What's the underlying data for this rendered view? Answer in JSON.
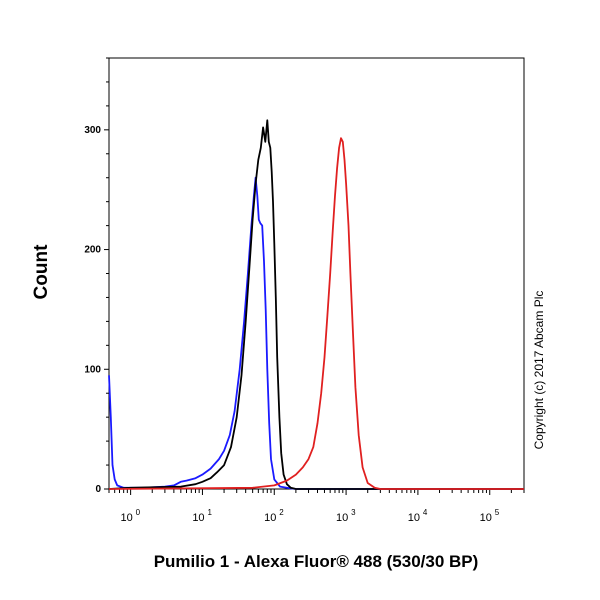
{
  "chart_data": {
    "type": "line",
    "title": "",
    "xlabel": "Pumilio 1 - Alexa Fluor® 488 (530/30 BP)",
    "ylabel": "Count",
    "xscale": "log",
    "xlim": [
      0.5,
      300000
    ],
    "ylim": [
      0,
      360
    ],
    "grid": false,
    "legend": "none",
    "copyright": "Copyright (c) 2017 Abcam Plc",
    "y_ticks": [
      {
        "value": 0,
        "label": "0"
      },
      {
        "value": 100,
        "label": "100"
      },
      {
        "value": 200,
        "label": "200"
      },
      {
        "value": 300,
        "label": "300"
      }
    ],
    "x_ticks": [
      {
        "value": 1,
        "base": "10",
        "exp": "0"
      },
      {
        "value": 10,
        "base": "10",
        "exp": "1"
      },
      {
        "value": 100,
        "base": "10",
        "exp": "2"
      },
      {
        "value": 1000,
        "base": "10",
        "exp": "3"
      },
      {
        "value": 10000,
        "base": "10",
        "exp": "4"
      },
      {
        "value": 100000,
        "base": "10",
        "exp": "5"
      }
    ],
    "series": [
      {
        "color": "#1a1aff",
        "x": [
          0.5,
          0.53,
          0.56,
          0.6,
          0.65,
          0.8,
          1.5,
          3,
          4,
          5,
          6,
          8,
          10,
          13,
          17,
          20,
          24,
          28,
          33,
          38,
          43,
          48,
          52,
          55,
          58,
          61,
          64,
          68,
          72,
          76,
          80,
          85,
          90,
          100,
          120,
          150,
          200,
          1000,
          300000
        ],
        "y": [
          95,
          60,
          20,
          8,
          3,
          1,
          1,
          2,
          3,
          6,
          7,
          9,
          12,
          17,
          25,
          32,
          45,
          65,
          100,
          140,
          180,
          220,
          245,
          260,
          245,
          225,
          222,
          220,
          190,
          150,
          100,
          55,
          25,
          8,
          2,
          1,
          0,
          0,
          0
        ]
      },
      {
        "color": "#000000",
        "x": [
          0.5,
          1,
          5,
          8,
          10,
          13,
          16,
          20,
          25,
          30,
          35,
          40,
          45,
          50,
          55,
          60,
          65,
          70,
          75,
          80,
          84,
          88,
          92,
          96,
          100,
          105,
          110,
          118,
          125,
          135,
          150,
          170,
          200,
          250,
          1000,
          300000
        ],
        "y": [
          0,
          1,
          2,
          4,
          6,
          9,
          14,
          20,
          35,
          60,
          95,
          140,
          185,
          225,
          255,
          275,
          285,
          302,
          290,
          308,
          290,
          285,
          265,
          240,
          205,
          160,
          110,
          60,
          30,
          12,
          4,
          1,
          0,
          0,
          0,
          0
        ]
      },
      {
        "color": "#e02020",
        "x": [
          0.5,
          50,
          100,
          150,
          200,
          250,
          300,
          350,
          400,
          450,
          500,
          550,
          600,
          650,
          700,
          750,
          800,
          850,
          900,
          950,
          1000,
          1080,
          1150,
          1250,
          1350,
          1500,
          1700,
          2000,
          2500,
          3000,
          300000
        ],
        "y": [
          0,
          1,
          3,
          7,
          12,
          18,
          25,
          35,
          55,
          80,
          110,
          145,
          180,
          215,
          245,
          268,
          285,
          293,
          290,
          275,
          255,
          220,
          180,
          130,
          85,
          45,
          18,
          5,
          1,
          0,
          0
        ]
      }
    ]
  }
}
